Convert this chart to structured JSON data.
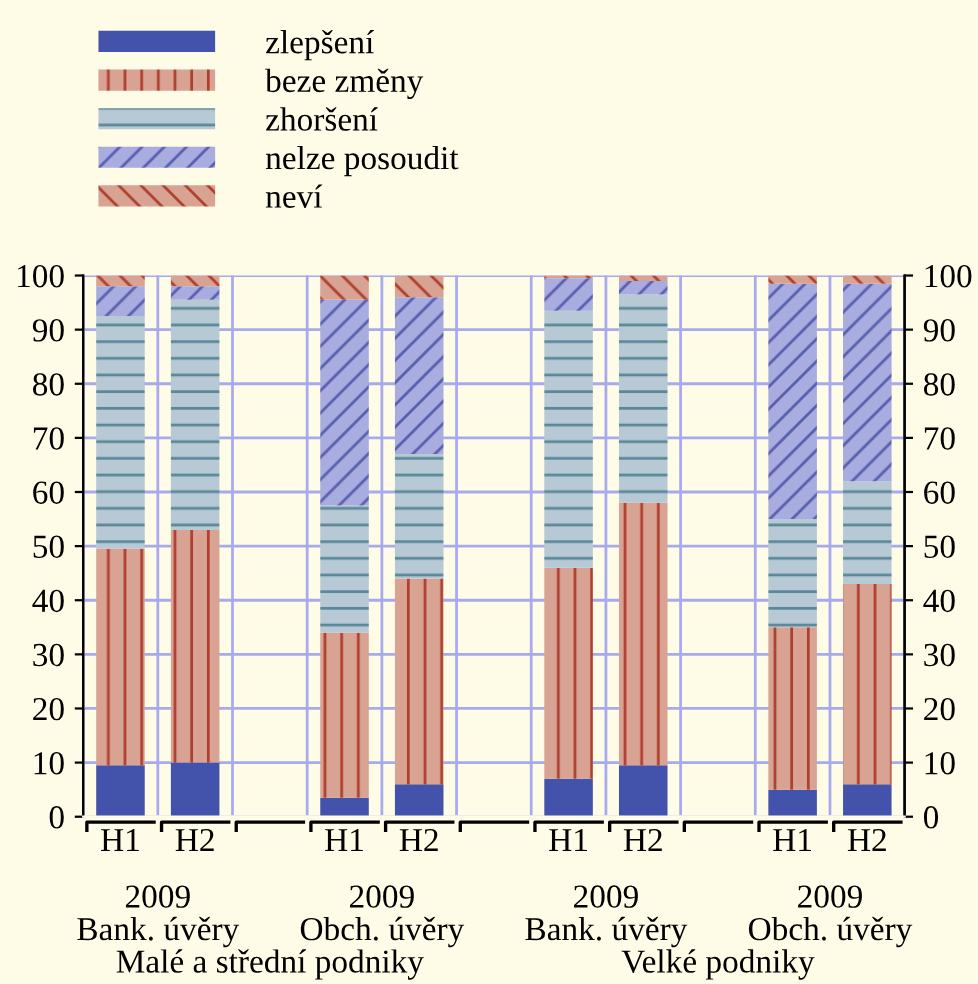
{
  "chart_data": {
    "type": "bar",
    "stacked": true,
    "categories": [
      "H1",
      "H2",
      null,
      "H1",
      "H2",
      null,
      "H1",
      "H2",
      null,
      "H1",
      "H2"
    ],
    "series": [
      {
        "name": "zlepšení",
        "color": "#4353ab",
        "values": [
          9.5,
          10,
          null,
          3.5,
          6,
          null,
          7,
          9.5,
          null,
          5,
          6
        ]
      },
      {
        "name": "beze změny",
        "color": "#d9a393",
        "values": [
          40,
          43,
          null,
          30.5,
          38,
          null,
          39,
          48.5,
          null,
          30,
          37
        ]
      },
      {
        "name": "zhoršení",
        "color": "#b6c9d5",
        "values": [
          43,
          42.5,
          null,
          23.5,
          23,
          null,
          47.5,
          38.5,
          null,
          20,
          19
        ]
      },
      {
        "name": "nelze posoudit",
        "color": "#a8acdf",
        "values": [
          5.5,
          2.5,
          null,
          38,
          29,
          null,
          6,
          2.5,
          null,
          43.5,
          36.5
        ]
      },
      {
        "name": "neví",
        "color": "#d9a393",
        "values": [
          2,
          2,
          null,
          4.5,
          4,
          null,
          0.5,
          1,
          null,
          1.5,
          1.5
        ]
      }
    ],
    "ylim": [
      0,
      100
    ],
    "yticks": [
      0,
      10,
      20,
      30,
      40,
      50,
      60,
      70,
      80,
      90,
      100
    ],
    "y2lim": [
      0,
      100
    ],
    "y2ticks": [
      0,
      10,
      20,
      30,
      40,
      50,
      60,
      70,
      80,
      90,
      100
    ],
    "grid": true,
    "legend": "top left",
    "annotations": [
      "2009",
      "Bank. úvěry",
      "2009",
      "Obch. úvěry",
      "2009",
      "Bank. úvěry",
      "2009",
      "Obch. úvěry",
      "Malé a střední podniky",
      "Velké podniky"
    ]
  }
}
